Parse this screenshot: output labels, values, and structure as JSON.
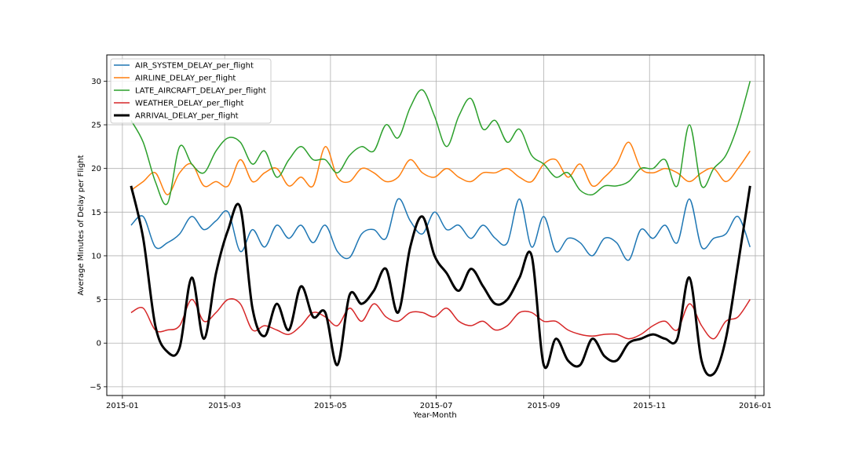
{
  "chart_data": {
    "type": "line",
    "title": "",
    "xlabel": "Year-Month",
    "ylabel": "Average Minutes of Delay per Flight",
    "grid": true,
    "legend_position": "top-left",
    "xlim": [
      "2014-12-23",
      "2016-01-06"
    ],
    "ylim": [
      -6,
      33
    ],
    "x_ticks": [
      "2015-01",
      "2015-03",
      "2015-05",
      "2015-07",
      "2015-09",
      "2015-11",
      "2016-01"
    ],
    "y_ticks": [
      -5,
      0,
      5,
      10,
      15,
      20,
      25,
      30
    ],
    "x": [
      "2015-01-06",
      "2015-01-13",
      "2015-01-20",
      "2015-01-27",
      "2015-02-03",
      "2015-02-10",
      "2015-02-17",
      "2015-02-24",
      "2015-03-03",
      "2015-03-10",
      "2015-03-17",
      "2015-03-24",
      "2015-03-31",
      "2015-04-07",
      "2015-04-14",
      "2015-04-21",
      "2015-04-28",
      "2015-05-05",
      "2015-05-12",
      "2015-05-19",
      "2015-05-26",
      "2015-06-02",
      "2015-06-09",
      "2015-06-16",
      "2015-06-23",
      "2015-06-30",
      "2015-07-07",
      "2015-07-14",
      "2015-07-21",
      "2015-07-28",
      "2015-08-04",
      "2015-08-11",
      "2015-08-18",
      "2015-08-25",
      "2015-09-01",
      "2015-09-08",
      "2015-09-15",
      "2015-09-22",
      "2015-09-29",
      "2015-10-06",
      "2015-10-13",
      "2015-10-20",
      "2015-10-27",
      "2015-11-03",
      "2015-11-10",
      "2015-11-17",
      "2015-11-24",
      "2015-12-01",
      "2015-12-08",
      "2015-12-15",
      "2015-12-22",
      "2015-12-29"
    ],
    "series": [
      {
        "name": "AIR_SYSTEM_DELAY_per_flight",
        "color": "#1f77b4",
        "width": 1.5,
        "values": [
          13.5,
          14.5,
          11.0,
          11.5,
          12.5,
          14.5,
          13.0,
          14.0,
          15.0,
          10.5,
          13.0,
          11.0,
          13.5,
          12.0,
          13.5,
          11.5,
          13.5,
          10.5,
          9.8,
          12.5,
          13.0,
          12.0,
          16.5,
          14.0,
          12.5,
          15.0,
          13.0,
          13.5,
          12.0,
          13.5,
          12.0,
          11.5,
          16.5,
          11.0,
          14.5,
          10.5,
          12.0,
          11.5,
          10.0,
          12.0,
          11.5,
          9.5,
          13.0,
          12.0,
          13.5,
          11.5,
          16.5,
          11.0,
          12.0,
          12.5,
          14.5,
          11.0
        ]
      },
      {
        "name": "AIRLINE_DELAY_per_flight",
        "color": "#ff7f0e",
        "width": 1.5,
        "values": [
          17.5,
          18.5,
          19.5,
          17.0,
          19.5,
          20.5,
          18.0,
          18.5,
          18.0,
          21.0,
          18.5,
          19.5,
          20.0,
          18.0,
          19.0,
          18.0,
          22.5,
          19.0,
          18.5,
          20.0,
          19.5,
          18.5,
          19.0,
          21.0,
          19.5,
          19.0,
          20.0,
          19.0,
          18.5,
          19.5,
          19.5,
          20.0,
          19.0,
          18.5,
          20.5,
          21.0,
          19.0,
          20.5,
          18.0,
          19.0,
          20.5,
          23.0,
          20.0,
          19.5,
          20.0,
          19.5,
          18.5,
          19.5,
          20.0,
          18.5,
          20.0,
          22.0
        ]
      },
      {
        "name": "LATE_AIRCRAFT_DELAY_per_flight",
        "color": "#2ca02c",
        "width": 1.5,
        "values": [
          25.5,
          23.0,
          18.5,
          16.0,
          22.5,
          20.5,
          19.5,
          22.0,
          23.5,
          23.0,
          20.5,
          22.0,
          19.0,
          21.0,
          22.5,
          21.0,
          21.0,
          19.5,
          21.5,
          22.5,
          22.0,
          25.0,
          23.5,
          27.0,
          29.0,
          26.0,
          22.5,
          26.0,
          28.0,
          24.5,
          25.5,
          23.0,
          24.5,
          21.5,
          20.5,
          19.0,
          19.5,
          17.5,
          17.0,
          18.0,
          18.0,
          18.5,
          20.0,
          20.0,
          21.0,
          18.0,
          25.0,
          18.0,
          20.0,
          21.5,
          25.0,
          30.0
        ]
      },
      {
        "name": "WEATHER_DELAY_per_flight",
        "color": "#d62728",
        "width": 1.5,
        "values": [
          3.5,
          4.0,
          1.5,
          1.5,
          2.0,
          5.0,
          2.5,
          3.5,
          5.0,
          4.5,
          1.5,
          2.0,
          1.5,
          1.0,
          2.0,
          3.5,
          3.0,
          2.0,
          4.0,
          2.5,
          4.5,
          3.0,
          2.5,
          3.5,
          3.5,
          3.0,
          4.0,
          2.5,
          2.0,
          2.5,
          1.5,
          2.0,
          3.5,
          3.5,
          2.5,
          2.5,
          1.5,
          1.0,
          0.8,
          1.0,
          1.0,
          0.5,
          1.0,
          2.0,
          2.5,
          1.5,
          4.5,
          2.0,
          0.5,
          2.5,
          3.0,
          5.0
        ]
      },
      {
        "name": "ARRIVAL_DELAY_per_flight",
        "color": "#000000",
        "width": 3,
        "values": [
          18.0,
          12.0,
          2.0,
          -1.0,
          -0.5,
          7.5,
          0.5,
          8.0,
          13.0,
          15.5,
          4.0,
          0.8,
          4.5,
          1.5,
          6.5,
          3.0,
          3.5,
          -2.5,
          5.5,
          4.5,
          6.0,
          8.5,
          3.5,
          11.0,
          14.5,
          10.0,
          8.0,
          6.0,
          8.5,
          6.5,
          4.5,
          5.0,
          7.5,
          10.0,
          -2.5,
          0.5,
          -2.0,
          -2.5,
          0.5,
          -1.5,
          -2.0,
          0.0,
          0.5,
          1.0,
          0.5,
          0.5,
          7.5,
          -2.0,
          -3.5,
          0.5,
          9.0,
          18.0
        ]
      }
    ]
  }
}
